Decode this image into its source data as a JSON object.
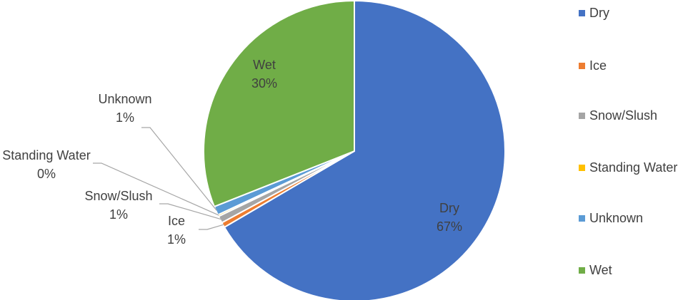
{
  "chart_data": {
    "type": "pie",
    "title": "",
    "categories": [
      "Dry",
      "Ice",
      "Snow/Slush",
      "Standing Water",
      "Unknown",
      "Wet"
    ],
    "values": [
      67,
      1,
      1,
      0,
      1,
      30
    ],
    "labels": [
      "67%",
      "1%",
      "1%",
      "0%",
      "1%",
      "30%"
    ],
    "colors": [
      "#4472C4",
      "#ED7D31",
      "#A5A5A5",
      "#FFC000",
      "#5B9BD5",
      "#70AD47"
    ],
    "legend_position": "right",
    "data_labels": "category name and percentage, outside with leader lines for small slices"
  }
}
